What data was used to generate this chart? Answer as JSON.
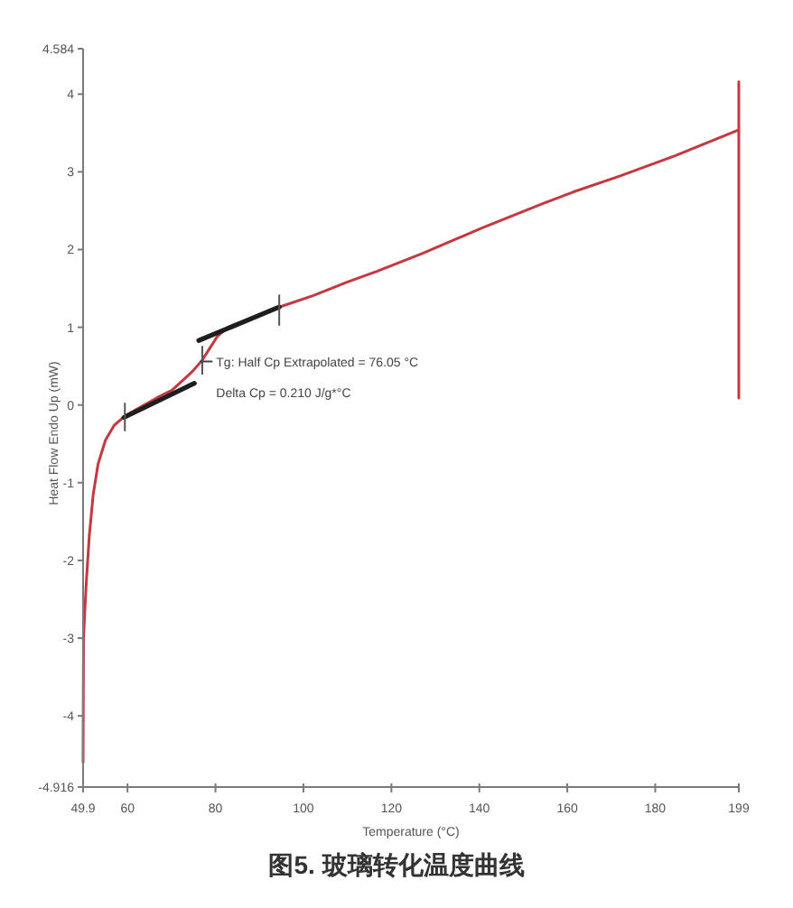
{
  "chart_data": {
    "type": "line",
    "xlabel": "Temperature (°C)",
    "ylabel": "Heat Flow Endo Up (mW)",
    "xlim": [
      49.9,
      199
    ],
    "xticks": [
      49.9,
      60,
      80,
      100,
      120,
      140,
      160,
      180,
      199
    ],
    "ylim": [
      -4.916,
      4.584
    ],
    "yticks": [
      -4.916,
      -4,
      -3,
      -2,
      -1,
      0,
      1,
      2,
      3,
      4,
      4.584
    ],
    "series": [
      {
        "color": "#c4393f",
        "x": [
          49.9,
          50.0,
          50.6,
          51.3,
          52.2,
          53.3,
          55.0,
          57.0,
          59.4,
          63.2,
          66.6,
          70.1,
          72.8,
          74.9,
          76.9,
          78.7,
          80.4,
          82.8,
          88.6,
          94.5,
          102.3,
          109.9,
          116.7,
          127.0,
          140.7,
          154.4,
          161.3,
          172.2,
          184.6,
          199.0,
          199.0,
          199.0
        ],
        "values": [
          -4.6,
          -3.0,
          -2.31,
          -1.69,
          -1.15,
          -0.76,
          -0.45,
          -0.26,
          -0.14,
          -0.02,
          0.09,
          0.19,
          0.33,
          0.44,
          0.57,
          0.73,
          0.88,
          1.0,
          1.12,
          1.26,
          1.41,
          1.58,
          1.72,
          1.95,
          2.28,
          2.59,
          2.74,
          2.95,
          3.21,
          3.54,
          4.16,
          0.09
        ]
      },
      {
        "color": "#1e1e1e",
        "x": [
          59.2,
          75.2
        ],
        "values": [
          -0.16,
          0.28
        ]
      },
      {
        "color": "#1e1e1e",
        "x": [
          76.2,
          94.5
        ],
        "values": [
          0.83,
          1.26
        ]
      },
      {
        "color": "#555555",
        "x": [
          59.4,
          59.4
        ],
        "values": [
          0.02,
          -0.33
        ]
      },
      {
        "color": "#555555",
        "x": [
          94.5,
          94.5
        ],
        "values": [
          1.41,
          1.03
        ]
      },
      {
        "color": "#555555",
        "x": [
          77.0,
          77.0
        ],
        "values": [
          0.75,
          0.4
        ]
      }
    ],
    "annotations": [
      {
        "text": "Tg: Half Cp Extrapolated = 76.05 °C",
        "x": 76.05,
        "y": 0.56
      },
      "Delta Cp = 0.210 J/g*°C",
      "图5. 玻璃转化温度曲线"
    ]
  }
}
